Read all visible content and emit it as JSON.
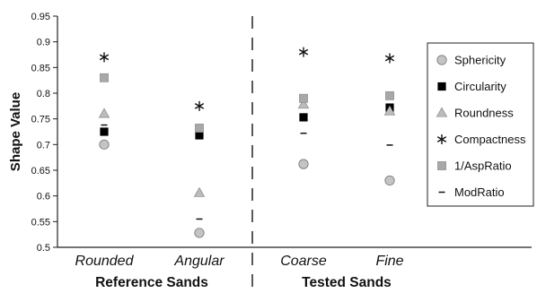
{
  "chart_data": {
    "type": "scatter",
    "ylabel": "Shape Value",
    "xlabel": "",
    "ylim": [
      0.5,
      0.95
    ],
    "yticks": [
      "0.5",
      "0.55",
      "0.6",
      "0.65",
      "0.7",
      "0.75",
      "0.8",
      "0.85",
      "0.9",
      "0.95"
    ],
    "categories": [
      "Rounded",
      "Angular",
      "Coarse",
      "Fine"
    ],
    "groups": [
      {
        "label": "Reference Sands",
        "categories": [
          "Rounded",
          "Angular"
        ]
      },
      {
        "label": "Tested Sands",
        "categories": [
          "Coarse",
          "Fine"
        ]
      }
    ],
    "grid": false,
    "legend_position": "right",
    "series": [
      {
        "name": "Sphericity",
        "marker": "circle",
        "color": "#c0c0c0",
        "values": [
          0.7,
          0.528,
          0.662,
          0.63
        ]
      },
      {
        "name": "Circularity",
        "marker": "square",
        "color": "#000000",
        "values": [
          0.725,
          0.718,
          0.753,
          0.772
        ]
      },
      {
        "name": "Roundness",
        "marker": "triangle",
        "color": "#b8b8b8",
        "values": [
          0.76,
          0.606,
          0.778,
          0.765
        ]
      },
      {
        "name": "Compactness",
        "marker": "asterisk",
        "color": "#111111",
        "values": [
          0.87,
          0.775,
          0.88,
          0.868
        ]
      },
      {
        "name": "1/AspRatio",
        "marker": "square",
        "color": "#a8a8a8",
        "values": [
          0.83,
          0.732,
          0.79,
          0.795
        ]
      },
      {
        "name": "ModRatio",
        "marker": "dash",
        "color": "#111111",
        "values": [
          0.738,
          0.555,
          0.722,
          0.699
        ]
      }
    ]
  }
}
